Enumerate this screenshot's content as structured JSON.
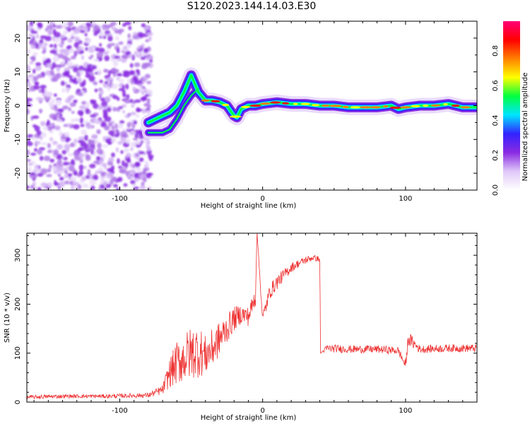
{
  "title": "S120.2023.144.14.03.E30",
  "chart_data": [
    {
      "type": "heatmap",
      "xlabel": "Height of straight line (km)",
      "ylabel": "Frequency (Hz)",
      "xlim": [
        -165,
        150
      ],
      "ylim": [
        -25,
        25
      ],
      "x_ticks": [
        -100,
        0,
        100
      ],
      "y_ticks": [
        -20,
        -10,
        0,
        10,
        20
      ],
      "colorbar": {
        "label": "Normalized spectral amplitude",
        "range": [
          0,
          0.97
        ],
        "ticks": [
          0.0,
          0.2,
          0.4,
          0.6,
          0.8
        ],
        "tick_labels": [
          "0.0",
          "0.2",
          "0.4",
          "0.6",
          "0.8"
        ],
        "colormap": [
          "#ffffff",
          "#e0c8f8",
          "#8a2be2",
          "#3322ff",
          "#00e5ff",
          "#00ff40",
          "#ffff00",
          "#ff8000",
          "#ff0000",
          "#ff0077"
        ]
      },
      "ridge": {
        "x": [
          -80,
          -75,
          -70,
          -65,
          -60,
          -55,
          -50,
          -45,
          -40,
          -35,
          -30,
          -25,
          -20,
          -18,
          -15,
          -10,
          -5,
          0,
          10,
          20,
          30,
          40,
          50,
          60,
          70,
          80,
          90,
          95,
          100,
          110,
          120,
          130,
          140,
          150
        ],
        "y": [
          -5,
          -4,
          -3,
          -2,
          0,
          4,
          9,
          4,
          1.5,
          1.5,
          1,
          0,
          -3,
          -3.5,
          -1,
          0,
          0,
          0.5,
          1,
          0.5,
          0.5,
          0,
          0,
          -0.5,
          -0.5,
          -0.5,
          0,
          -1,
          -0.5,
          0,
          0,
          0.5,
          -0.5,
          -0.5
        ]
      },
      "noise_region_x": [
        -165,
        -78
      ]
    },
    {
      "type": "line",
      "xlabel": "Height of straight line (km)",
      "ylabel": "SNR (10 * v/v)",
      "xlim": [
        -165,
        150
      ],
      "ylim": [
        0,
        345
      ],
      "x_ticks": [
        -100,
        0,
        100
      ],
      "y_ticks": [
        0,
        100,
        200,
        300
      ],
      "color": "#ee3333",
      "series": [
        {
          "x": [
            -165,
            -140,
            -110,
            -80,
            -70,
            -65,
            -60,
            -55,
            -50,
            -45,
            -40,
            -35,
            -30,
            -25,
            -20,
            -15,
            -10,
            -5,
            -4,
            0,
            5,
            10,
            15,
            20,
            25,
            30,
            35,
            40,
            40.5,
            45,
            60,
            80,
            95,
            100,
            102,
            110,
            130,
            150
          ],
          "y": [
            10,
            12,
            12,
            14,
            25,
            60,
            80,
            90,
            100,
            105,
            95,
            110,
            130,
            150,
            170,
            180,
            175,
            215,
            350,
            170,
            225,
            245,
            260,
            275,
            283,
            290,
            295,
            292,
            100,
            110,
            108,
            108,
            105,
            75,
            130,
            108,
            110,
            110
          ],
          "noise": [
            4,
            4,
            4,
            5,
            10,
            30,
            45,
            50,
            55,
            55,
            40,
            40,
            35,
            30,
            25,
            20,
            20,
            20,
            0,
            15,
            15,
            15,
            12,
            10,
            8,
            8,
            6,
            6,
            0,
            8,
            8,
            8,
            8,
            10,
            15,
            8,
            8,
            8
          ]
        }
      ]
    }
  ]
}
